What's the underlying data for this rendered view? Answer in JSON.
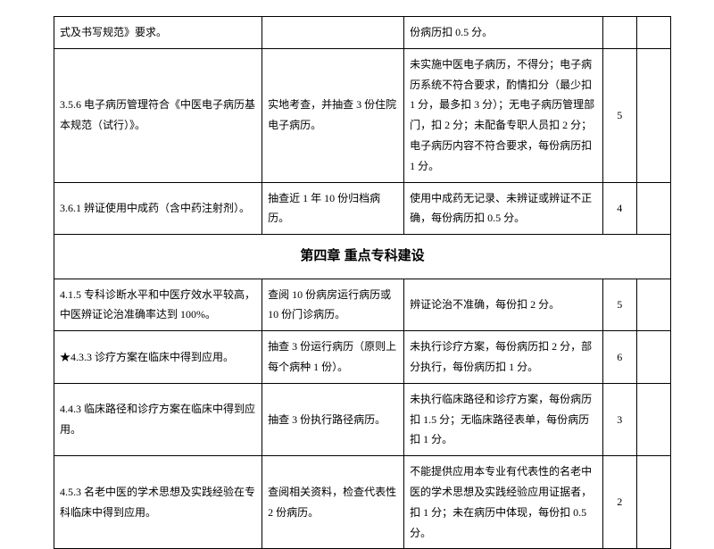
{
  "table": {
    "col_widths": [
      "220px",
      "150px",
      "210px",
      "36px",
      "36px"
    ],
    "rows": [
      {
        "c1": "式及书写规范》要求。",
        "c2": "",
        "c3": "份病历扣 0.5 分。",
        "c4": "",
        "c5": ""
      },
      {
        "c1": "3.5.6 电子病历管理符合《中医电子病历基本规范（试行）》。",
        "c2": "实地考查，并抽查 3 份住院电子病历。",
        "c3": "未实施中医电子病历，不得分；电子病历系统不符合要求，酌情扣分（最少扣 1 分，最多扣 3 分）；无电子病历管理部门，扣 2 分；未配备专职人员扣 2 分；电子病历内容不符合要求，每份病历扣 1 分。",
        "c4": "5",
        "c5": ""
      },
      {
        "c1": "3.6.1 辨证使用中成药（含中药注射剂）。",
        "c2": "抽查近 1 年 10 份归档病历。",
        "c3": "使用中成药无记录、未辨证或辨证不正确，每份病历扣 0.5 分。",
        "c4": "4",
        "c5": ""
      },
      {
        "section": "第四章  重点专科建设"
      },
      {
        "c1": "4.1.5 专科诊断水平和中医疗效水平较高，中医辨证论治准确率达到 100%。",
        "c2": "查阅 10 份病房运行病历或 10 份门诊病历。",
        "c3": "辨证论治不准确，每份扣 2 分。",
        "c4": "5",
        "c5": ""
      },
      {
        "c1": "★4.3.3 诊疗方案在临床中得到应用。",
        "c2": "抽查 3 份运行病历（原则上每个病种 1 份）。",
        "c3": "未执行诊疗方案，每份病历扣 2 分，部分执行，每份病历扣 1 分。",
        "c4": "6",
        "c5": ""
      },
      {
        "c1": "4.4.3 临床路径和诊疗方案在临床中得到应用。",
        "c2": "抽查 3 份执行路径病历。",
        "c3": "未执行临床路径和诊疗方案，每份病历扣 1.5 分；无临床路径表单，每份病历扣 1 分。",
        "c4": "3",
        "c5": ""
      },
      {
        "c1": "4.5.3 名老中医的学术思想及实践经验在专科临床中得到应用。",
        "c2": "查阅相关资料，检查代表性 2 份病历。",
        "c3": "不能提供应用本专业有代表性的名老中医的学术思想及实践经验应用证据者，扣 1 分；未在病历中体现，每份扣 0.5 分。",
        "c4": "2",
        "c5": ""
      }
    ]
  }
}
